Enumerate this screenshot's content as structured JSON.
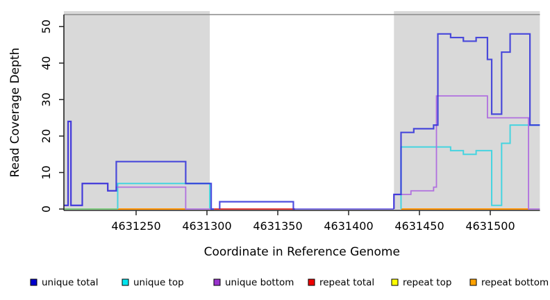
{
  "figure": {
    "xlabel": "Coordinate in Reference Genome",
    "ylabel": "Read Coverage Depth"
  },
  "axes": {
    "x_ticks": [
      4631250,
      4631300,
      4631350,
      4631400,
      4631450,
      4631500
    ],
    "y_ticks": [
      0,
      10,
      20,
      30,
      40,
      50
    ],
    "x_range": [
      4631199,
      4631535
    ],
    "y_range": [
      0,
      53
    ]
  },
  "shaded_regions": [
    {
      "from": 4631199,
      "to": 4631302,
      "color": "#d9d9d9"
    },
    {
      "from": 4631432,
      "to": 4631535,
      "color": "#d9d9d9"
    }
  ],
  "legend": [
    {
      "label": "unique total",
      "color": "#0000cc"
    },
    {
      "label": "unique top",
      "color": "#00e5ee"
    },
    {
      "label": "unique bottom",
      "color": "#9933cc"
    },
    {
      "label": "repeat total",
      "color": "#ee0000"
    },
    {
      "label": "repeat top",
      "color": "#ffff00"
    },
    {
      "label": "repeat bottom",
      "color": "#ffa200"
    }
  ],
  "chart_data": {
    "type": "line",
    "step": true,
    "title": "",
    "xlabel": "Coordinate in Reference Genome",
    "ylabel": "Read Coverage Depth",
    "xlim": [
      4631199,
      4631535
    ],
    "ylim": [
      0,
      53
    ],
    "grid": false,
    "legend_position": "bottom",
    "series": [
      {
        "name": "unique top",
        "color": "#45d4e0",
        "width": 2,
        "parts": [
          {
            "points": [
              [
                4631237,
                0
              ],
              [
                4631237,
                7
              ],
              [
                4631302,
                0
              ]
            ],
            "end": 4631302
          },
          {
            "points": [
              [
                4631437,
                0
              ],
              [
                4631437,
                17
              ],
              [
                4631472,
                16
              ],
              [
                4631481,
                15
              ],
              [
                4631490,
                16
              ],
              [
                4631501,
                1
              ],
              [
                4631508,
                18
              ],
              [
                4631514,
                23
              ]
            ],
            "end": 4631535
          }
        ]
      },
      {
        "name": "unique bottom",
        "color": "#b06fdf",
        "width": 1.8,
        "parts": [
          {
            "points": [
              [
                4631199,
                1
              ],
              [
                4631202,
                24
              ],
              [
                4631204,
                1
              ],
              [
                4631212,
                7
              ],
              [
                4631230,
                5
              ],
              [
                4631236,
                6
              ],
              [
                4631285,
                0
              ]
            ],
            "end": 4631303
          },
          {
            "points": [
              [
                4631432,
                0
              ],
              [
                4631432,
                4
              ],
              [
                4631444,
                5
              ],
              [
                4631460,
                6
              ],
              [
                4631462,
                31
              ],
              [
                4631498,
                25
              ],
              [
                4631527,
                0
              ]
            ],
            "end": 4631535
          }
        ]
      },
      {
        "name": "unique total",
        "color": "#2f2fd9",
        "opacity": 0.85,
        "width": 2.2,
        "parts": [
          {
            "points": [
              [
                4631199,
                1
              ],
              [
                4631202,
                24
              ],
              [
                4631204,
                1
              ],
              [
                4631212,
                7
              ],
              [
                4631230,
                5
              ],
              [
                4631236,
                13
              ],
              [
                4631285,
                7
              ],
              [
                4631303,
                0
              ]
            ],
            "end": 4631305
          },
          {
            "points": [
              [
                4631309,
                0
              ],
              [
                4631309,
                2
              ],
              [
                4631361,
                0
              ]
            ],
            "end": 4631362
          },
          {
            "points": [
              [
                4631432,
                0
              ],
              [
                4631432,
                4
              ],
              [
                4631437,
                21
              ],
              [
                4631446,
                22
              ],
              [
                4631460,
                23
              ],
              [
                4631463,
                48
              ],
              [
                4631472,
                47
              ],
              [
                4631481,
                46
              ],
              [
                4631490,
                47
              ],
              [
                4631498,
                41
              ],
              [
                4631501,
                26
              ],
              [
                4631508,
                43
              ],
              [
                4631514,
                48
              ],
              [
                4631528,
                23
              ]
            ],
            "end": 4631535
          }
        ]
      }
    ],
    "baseline_segments": [
      {
        "from": 4631199,
        "to": 4631237,
        "color": "#7cc87c"
      },
      {
        "from": 4631237,
        "to": 4631285,
        "color": "#ff9100"
      },
      {
        "from": 4631305,
        "to": 4631362,
        "color": "#e03a3a"
      },
      {
        "from": 4631362,
        "to": 4631432,
        "color": "#7b6fe2"
      },
      {
        "from": 4631437,
        "to": 4631527,
        "color": "#ff9100"
      }
    ]
  }
}
